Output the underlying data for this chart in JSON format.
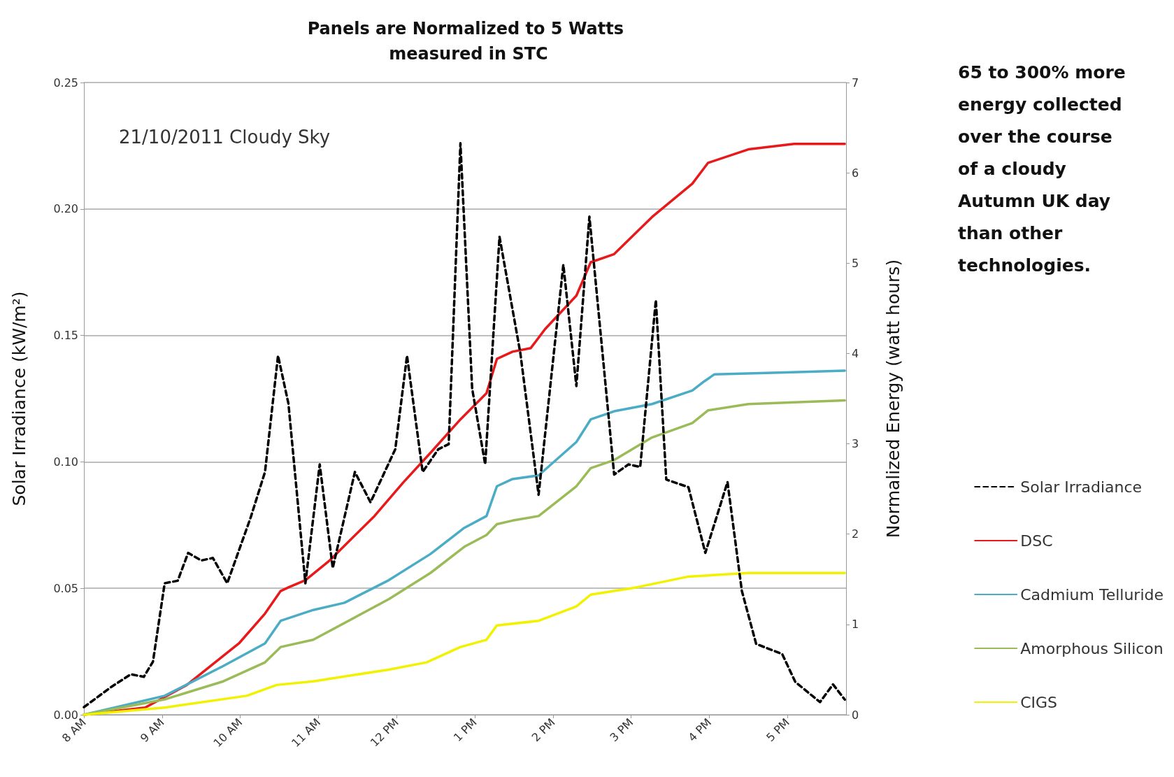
{
  "chart_data": {
    "type": "line",
    "title": "Panels are Normalized to 5 Watts measured in STC",
    "ylabel": "Solar Irradiance (kW/m²)",
    "y2label": "Normalized Energy (watt hours)",
    "annotations": [
      "21/10/2011 Cloudy Sky",
      "65 to 300% more energy collected over the course of a cloudy Autumn UK day than other technologies."
    ],
    "xlim": [
      "2011-10-21T08:00",
      "2011-10-21T17:45"
    ],
    "xticks": [
      {
        "value": "2011-10-21T08:00",
        "label": "8 AM"
      },
      {
        "value": "2011-10-21T09:00",
        "label": "9 AM"
      },
      {
        "value": "2011-10-21T10:00",
        "label": "10 AM"
      },
      {
        "value": "2011-10-21T11:00",
        "label": "11 AM"
      },
      {
        "value": "2011-10-21T12:00",
        "label": "12 PM"
      },
      {
        "value": "2011-10-21T13:00",
        "label": "1 PM"
      },
      {
        "value": "2011-10-21T14:00",
        "label": "2 PM"
      },
      {
        "value": "2011-10-21T15:00",
        "label": "3 PM"
      },
      {
        "value": "2011-10-21T16:00",
        "label": "4 PM"
      },
      {
        "value": "2011-10-21T17:00",
        "label": "5 PM"
      }
    ],
    "ylim": [
      0,
      0.25
    ],
    "yticks": [
      {
        "value": 0,
        "label": "0.00"
      },
      {
        "value": 0.05,
        "label": "0.05"
      },
      {
        "value": 0.1,
        "label": "0.10"
      },
      {
        "value": 0.15,
        "label": "0.15"
      },
      {
        "value": 0.2,
        "label": "0.20"
      },
      {
        "value": 0.25,
        "label": "0.25"
      }
    ],
    "y2lim": [
      0,
      7
    ],
    "y2ticks": [
      0,
      1,
      2,
      3,
      4,
      5,
      6,
      7
    ],
    "grid": "y",
    "legend": "right",
    "marker": "none",
    "series": [
      {
        "name": "Solar Irradiance",
        "color": "#000000",
        "line_style": "dashed",
        "x": [
          "2011-10-21T08:00",
          "2011-10-21T08:21",
          "2011-10-21T08:36",
          "2011-10-21T08:46",
          "2011-10-21T08:53",
          "2011-10-21T09:02",
          "2011-10-21T09:12",
          "2011-10-21T09:20",
          "2011-10-21T09:30",
          "2011-10-21T09:39",
          "2011-10-21T09:50",
          "2011-10-21T10:08",
          "2011-10-21T10:19",
          "2011-10-21T10:29",
          "2011-10-21T10:37",
          "2011-10-21T10:50",
          "2011-10-21T11:01",
          "2011-10-21T11:11",
          "2011-10-21T11:28",
          "2011-10-21T11:40",
          "2011-10-21T11:59",
          "2011-10-21T12:08",
          "2011-10-21T12:20",
          "2011-10-21T12:32",
          "2011-10-21T12:40",
          "2011-10-21T12:49",
          "2011-10-21T12:58",
          "2011-10-21T13:08",
          "2011-10-21T13:19",
          "2011-10-21T13:35",
          "2011-10-21T13:49",
          "2011-10-21T14:08",
          "2011-10-21T14:18",
          "2011-10-21T14:28",
          "2011-10-21T14:47",
          "2011-10-21T14:58",
          "2011-10-21T15:07",
          "2011-10-21T15:19",
          "2011-10-21T15:27",
          "2011-10-21T15:44",
          "2011-10-21T15:57",
          "2011-10-21T16:14",
          "2011-10-21T16:25",
          "2011-10-21T16:36",
          "2011-10-21T16:56",
          "2011-10-21T17:06",
          "2011-10-21T17:25",
          "2011-10-21T17:35",
          "2011-10-21T17:44"
        ],
        "values": [
          0.003,
          0.011,
          0.016,
          0.015,
          0.021,
          0.052,
          0.053,
          0.064,
          0.061,
          0.062,
          0.052,
          0.078,
          0.096,
          0.142,
          0.123,
          0.052,
          0.099,
          0.058,
          0.096,
          0.084,
          0.105,
          0.142,
          0.096,
          0.105,
          0.107,
          0.226,
          0.129,
          0.099,
          0.189,
          0.143,
          0.087,
          0.178,
          0.13,
          0.197,
          0.095,
          0.099,
          0.098,
          0.164,
          0.093,
          0.09,
          0.064,
          0.092,
          0.049,
          0.028,
          0.024,
          0.013,
          0.005,
          0.012,
          0.006
        ]
      },
      {
        "name": "DSC",
        "color": "#e8191b",
        "axis": "y2",
        "x": [
          "2011-10-21T08:00",
          "2011-10-21T08:47",
          "2011-10-21T09:19",
          "2011-10-21T09:59",
          "2011-10-21T10:19",
          "2011-10-21T10:31",
          "2011-10-21T10:37",
          "2011-10-21T10:50",
          "2011-10-21T11:08",
          "2011-10-21T11:43",
          "2011-10-21T12:05",
          "2011-10-21T12:26",
          "2011-10-21T12:49",
          "2011-10-21T13:09",
          "2011-10-21T13:17",
          "2011-10-21T13:29",
          "2011-10-21T13:43",
          "2011-10-21T13:54",
          "2011-10-21T14:18",
          "2011-10-21T14:29",
          "2011-10-21T14:47",
          "2011-10-21T15:16",
          "2011-10-21T15:47",
          "2011-10-21T15:59",
          "2011-10-21T16:30",
          "2011-10-21T17:05",
          "2011-10-21T17:44"
        ],
        "values": [
          0,
          0.08,
          0.33,
          0.79,
          1.12,
          1.37,
          1.41,
          1.49,
          1.7,
          2.2,
          2.57,
          2.9,
          3.27,
          3.56,
          3.94,
          4.02,
          4.06,
          4.27,
          4.64,
          5.01,
          5.1,
          5.51,
          5.88,
          6.11,
          6.26,
          6.32,
          6.32
        ]
      },
      {
        "name": "Cadmium Telluride",
        "color": "#4bacc6",
        "axis": "y2",
        "x": [
          "2011-10-21T08:00",
          "2011-10-21T09:02",
          "2011-10-21T09:47",
          "2011-10-21T10:19",
          "2011-10-21T10:31",
          "2011-10-21T10:56",
          "2011-10-21T11:20",
          "2011-10-21T11:54",
          "2011-10-21T12:26",
          "2011-10-21T12:52",
          "2011-10-21T13:09",
          "2011-10-21T13:17",
          "2011-10-21T13:29",
          "2011-10-21T13:49",
          "2011-10-21T14:18",
          "2011-10-21T14:29",
          "2011-10-21T14:47",
          "2011-10-21T15:16",
          "2011-10-21T15:47",
          "2011-10-21T15:56",
          "2011-10-21T16:04",
          "2011-10-21T16:59",
          "2011-10-21T17:44"
        ],
        "values": [
          0,
          0.21,
          0.54,
          0.79,
          1.04,
          1.16,
          1.24,
          1.49,
          1.78,
          2.07,
          2.2,
          2.53,
          2.61,
          2.65,
          3.02,
          3.27,
          3.36,
          3.44,
          3.59,
          3.69,
          3.77,
          3.79,
          3.81
        ]
      },
      {
        "name": "Amorphous Silicon",
        "color": "#9bbb59",
        "axis": "y2",
        "x": [
          "2011-10-21T08:00",
          "2011-10-21T09:02",
          "2011-10-21T09:47",
          "2011-10-21T10:19",
          "2011-10-21T10:31",
          "2011-10-21T10:56",
          "2011-10-21T11:54",
          "2011-10-21T12:26",
          "2011-10-21T12:52",
          "2011-10-21T13:09",
          "2011-10-21T13:17",
          "2011-10-21T13:29",
          "2011-10-21T13:49",
          "2011-10-21T14:18",
          "2011-10-21T14:29",
          "2011-10-21T14:47",
          "2011-10-21T15:16",
          "2011-10-21T15:47",
          "2011-10-21T15:59",
          "2011-10-21T16:30",
          "2011-10-21T17:44"
        ],
        "values": [
          0,
          0.17,
          0.37,
          0.58,
          0.75,
          0.83,
          1.28,
          1.57,
          1.86,
          1.99,
          2.11,
          2.15,
          2.2,
          2.53,
          2.73,
          2.82,
          3.07,
          3.23,
          3.37,
          3.44,
          3.48
        ]
      },
      {
        "name": "CIGS",
        "color": "#f2f200",
        "axis": "y2",
        "x": [
          "2011-10-21T08:00",
          "2011-10-21T09:02",
          "2011-10-21T10:05",
          "2011-10-21T10:28",
          "2011-10-21T10:56",
          "2011-10-21T11:54",
          "2011-10-21T12:23",
          "2011-10-21T12:49",
          "2011-10-21T13:09",
          "2011-10-21T13:17",
          "2011-10-21T13:49",
          "2011-10-21T14:18",
          "2011-10-21T14:29",
          "2011-10-21T15:04",
          "2011-10-21T15:44",
          "2011-10-21T16:30",
          "2011-10-21T17:44"
        ],
        "values": [
          0,
          0.08,
          0.21,
          0.33,
          0.37,
          0.5,
          0.58,
          0.75,
          0.83,
          0.99,
          1.04,
          1.2,
          1.33,
          1.41,
          1.53,
          1.57,
          1.57
        ]
      }
    ]
  }
}
